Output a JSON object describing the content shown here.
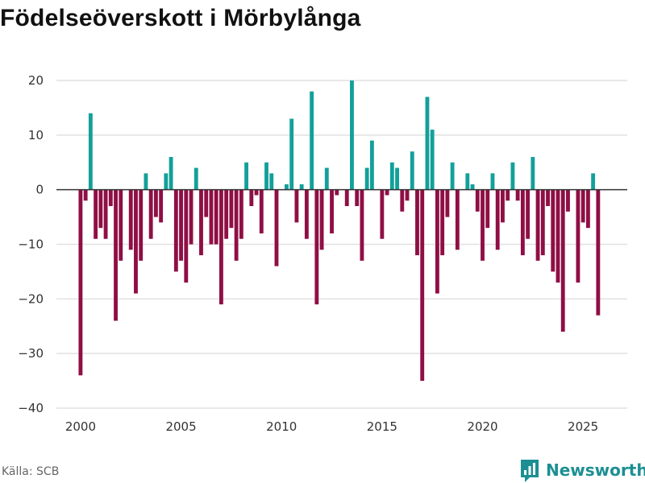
{
  "title": "Födelseöverskott i Mörbylånga",
  "source": "Källa: SCB",
  "brand": {
    "name": "Newsworthy"
  },
  "colors": {
    "positive": "#13a09a",
    "negative": "#8f0f45",
    "grid": "#e1e1e1",
    "zero": "#333333",
    "brand": "#1c8f92"
  },
  "chart_data": {
    "type": "bar",
    "title": "Födelseöverskott i Mörbylånga",
    "xlabel": "",
    "ylabel": "",
    "ylim": [
      -40,
      23
    ],
    "xlim": [
      1998.8,
      2027.2
    ],
    "yticks": [
      20,
      10,
      0,
      -10,
      -20,
      -30,
      -40
    ],
    "ytick_labels": [
      "20",
      "10",
      "0",
      "−10",
      "−20",
      "−30",
      "−40"
    ],
    "xticks": [
      2000,
      2005,
      2010,
      2015,
      2020,
      2025
    ],
    "xtick_labels": [
      "2000",
      "2005",
      "2010",
      "2015",
      "2020",
      "2025"
    ],
    "x_start": 2000.0,
    "x_step": 0.25,
    "values": [
      -34,
      -2,
      14,
      -9,
      -7,
      -9,
      -3,
      -24,
      -13,
      0,
      -11,
      -19,
      -13,
      3,
      -9,
      -5,
      -6,
      3,
      6,
      -15,
      -13,
      -17,
      -10,
      4,
      -12,
      -5,
      -10,
      -10,
      -21,
      -9,
      -7,
      -13,
      -9,
      5,
      -3,
      -1,
      -8,
      5,
      3,
      -14,
      0,
      1,
      13,
      -6,
      1,
      -9,
      18,
      -21,
      -11,
      4,
      -8,
      -1,
      0,
      -3,
      20,
      -3,
      -13,
      4,
      9,
      0,
      -9,
      -1,
      5,
      4,
      -4,
      -2,
      7,
      -12,
      -35,
      17,
      11,
      -19,
      -12,
      -5,
      5,
      -11,
      0,
      3,
      1,
      -4,
      -13,
      -7,
      3,
      -11,
      -6,
      -2,
      5,
      -2,
      -12,
      -9,
      6,
      -13,
      -12,
      -3,
      -15,
      -17,
      -26,
      -4,
      0,
      -17,
      -6,
      -7,
      3,
      -23
    ]
  }
}
